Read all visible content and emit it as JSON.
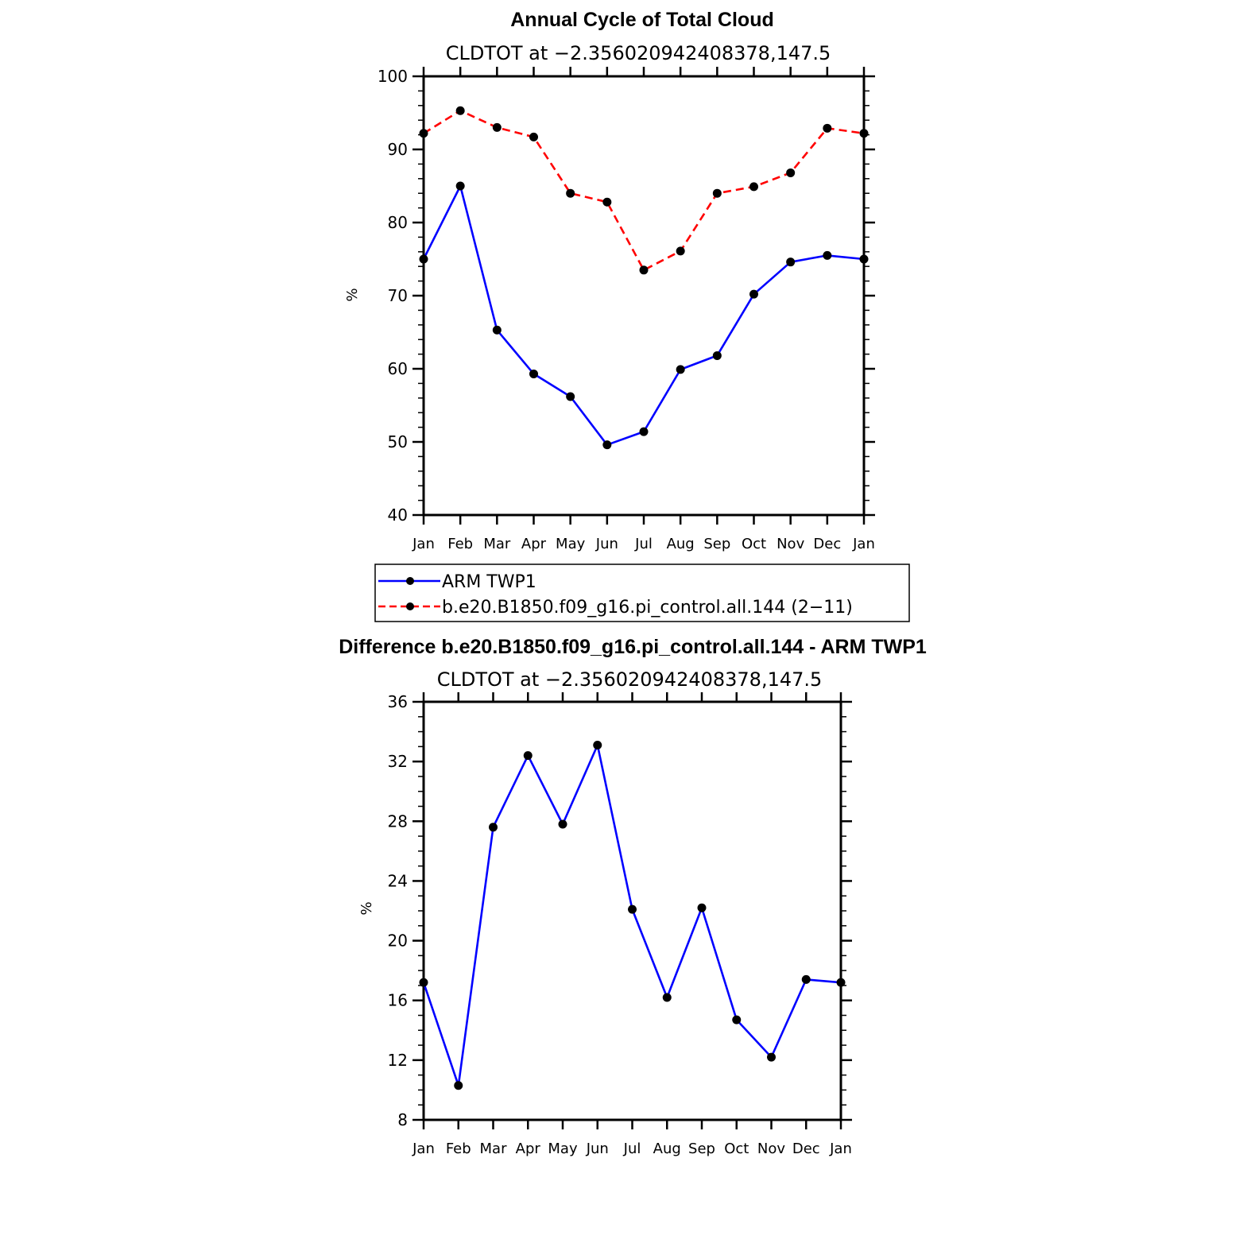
{
  "chart_data": [
    {
      "type": "line",
      "title": "Annual Cycle of Total Cloud",
      "subtitle": "CLDTOT at −2.356020942408378,147.5",
      "xlabel": "",
      "ylabel": "%",
      "ylim": [
        40,
        100
      ],
      "yticks": [
        40,
        50,
        60,
        70,
        80,
        90,
        100
      ],
      "categories": [
        "Jan",
        "Feb",
        "Mar",
        "Apr",
        "May",
        "Jun",
        "Jul",
        "Aug",
        "Sep",
        "Oct",
        "Nov",
        "Dec",
        "Jan"
      ],
      "series": [
        {
          "name": "ARM TWP1",
          "color": "#0000ff",
          "dash": "solid",
          "values": [
            75.0,
            85.0,
            65.3,
            59.3,
            56.2,
            49.6,
            51.4,
            59.9,
            61.8,
            70.2,
            74.6,
            75.5,
            75.0
          ]
        },
        {
          "name": "b.e20.B1850.f09_g16.pi_control.all.144 (2−11)",
          "color": "#ff0000",
          "dash": "dashed",
          "values": [
            92.2,
            95.3,
            93.0,
            91.7,
            84.0,
            82.8,
            73.5,
            76.1,
            84.0,
            84.9,
            86.8,
            92.9,
            92.2
          ]
        }
      ],
      "legend": {
        "position": "bottom-center",
        "entries": [
          "ARM TWP1",
          "b.e20.B1850.f09_g16.pi_control.all.144 (2−11)"
        ]
      }
    },
    {
      "type": "line",
      "title": "Difference b.e20.B1850.f09_g16.pi_control.all.144 - ARM TWP1",
      "subtitle": "CLDTOT at −2.356020942408378,147.5",
      "xlabel": "",
      "ylabel": "%",
      "ylim": [
        8,
        36
      ],
      "yticks": [
        8,
        12,
        16,
        20,
        24,
        28,
        32,
        36
      ],
      "categories": [
        "Jan",
        "Feb",
        "Mar",
        "Apr",
        "May",
        "Jun",
        "Jul",
        "Aug",
        "Sep",
        "Oct",
        "Nov",
        "Dec",
        "Jan"
      ],
      "series": [
        {
          "name": "Difference",
          "color": "#0000ff",
          "dash": "solid",
          "values": [
            17.2,
            10.3,
            27.6,
            32.4,
            27.8,
            33.1,
            22.1,
            16.2,
            22.2,
            14.7,
            12.2,
            17.4,
            17.2
          ]
        }
      ]
    }
  ]
}
